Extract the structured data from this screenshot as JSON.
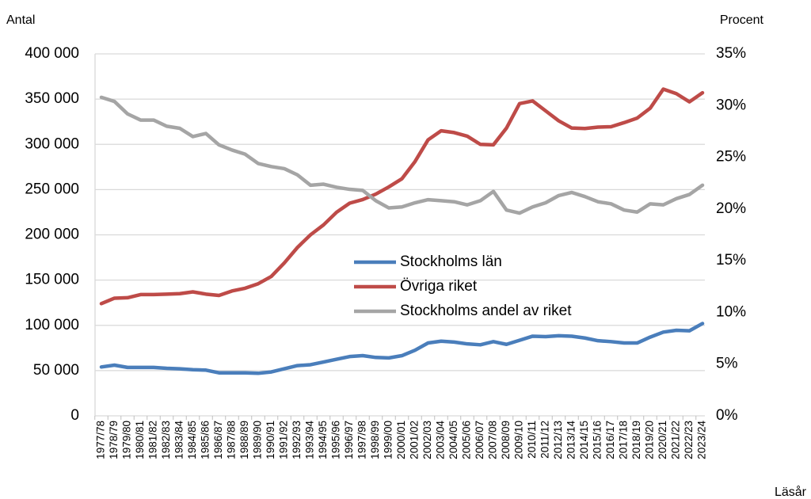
{
  "chart_data": {
    "type": "line",
    "y_label": "Antal",
    "y2_label": "Procent",
    "x_label": "Läsår",
    "categories": [
      "1977/78",
      "1978/79",
      "1979/80",
      "1980/81",
      "1981/82",
      "1982/83",
      "1983/84",
      "1984/85",
      "1985/86",
      "1986/87",
      "1987/88",
      "1988/89",
      "1989/90",
      "1990/91",
      "1991/92",
      "1992/93",
      "1993/94",
      "1994/95",
      "1995/96",
      "1996/97",
      "1997/98",
      "1998/99",
      "1999/00",
      "2000/01",
      "2001/02",
      "2002/03",
      "2003/04",
      "2004/05",
      "2005/06",
      "2006/07",
      "2007/08",
      "2008/09",
      "2009/10",
      "2010/11",
      "2011/12",
      "2012/13",
      "2013/14",
      "2014/15",
      "2015/16",
      "2016/17",
      "2017/18",
      "2018/19",
      "2019/20",
      "2020/21",
      "2021/22",
      "2022/23",
      "2023/24"
    ],
    "series": [
      {
        "name": "Stockholms län",
        "color": "#4a7ebb",
        "values": [
          54000,
          56000,
          53500,
          53500,
          53500,
          52500,
          52000,
          51000,
          50500,
          47500,
          47500,
          47500,
          47000,
          48500,
          52000,
          55500,
          56500,
          59500,
          62500,
          65500,
          66500,
          64500,
          64000,
          66500,
          72500,
          80500,
          82500,
          81500,
          79500,
          78500,
          82000,
          79000,
          83500,
          88000,
          87500,
          88500,
          88000,
          86000,
          83000,
          82000,
          80500,
          80500,
          87000,
          92500,
          94500,
          94000,
          102000
        ]
      },
      {
        "name": "Övriga riket",
        "color": "#be4b48",
        "values": [
          124000,
          130000,
          130500,
          134000,
          134000,
          134500,
          135000,
          137000,
          134500,
          133000,
          138000,
          141000,
          146000,
          154000,
          169000,
          186000,
          200000,
          211000,
          225000,
          235000,
          239000,
          245000,
          253000,
          262000,
          281000,
          305000,
          315000,
          313000,
          309000,
          300000,
          299500,
          318000,
          345000,
          348000,
          337000,
          326000,
          318000,
          317500,
          319000,
          319500,
          324000,
          329000,
          340000,
          361000,
          356000,
          347000,
          357000
        ]
      },
      {
        "name": "Stockholms andel av riket",
        "color": "#a5a5a5",
        "axis": "y2",
        "values": [
          30.8,
          30.4,
          29.2,
          28.6,
          28.6,
          28.0,
          27.8,
          27.0,
          27.3,
          26.2,
          25.7,
          25.3,
          24.4,
          24.1,
          23.9,
          23.3,
          22.3,
          22.4,
          22.1,
          21.9,
          21.8,
          20.8,
          20.1,
          20.2,
          20.6,
          20.9,
          20.8,
          20.7,
          20.4,
          20.8,
          21.7,
          19.9,
          19.6,
          20.2,
          20.6,
          21.3,
          21.6,
          21.2,
          20.7,
          20.5,
          19.9,
          19.7,
          20.5,
          20.4,
          21.0,
          21.4,
          22.3
        ]
      }
    ],
    "ylim": [
      0,
      400000
    ],
    "yticks": [
      0,
      {
        "value": 50000,
        "label": "50 000"
      },
      {
        "value": 100000,
        "label": "100 000"
      },
      {
        "value": 150000,
        "label": "150 000"
      },
      {
        "value": 200000,
        "label": "200 000"
      },
      {
        "value": 250000,
        "label": "250 000"
      },
      {
        "value": 300000,
        "label": "300 000"
      },
      {
        "value": 350000,
        "label": "350 000"
      },
      {
        "value": 400000,
        "label": "400 000"
      }
    ],
    "y2lim": [
      0,
      35
    ],
    "y2ticks": [
      {
        "value": 0,
        "label": "0%"
      },
      {
        "value": 5,
        "label": "5%"
      },
      {
        "value": 10,
        "label": "10%"
      },
      {
        "value": 15,
        "label": "15%"
      },
      {
        "value": 20,
        "label": "20%"
      },
      {
        "value": 25,
        "label": "25%"
      },
      {
        "value": 30,
        "label": "30%"
      },
      {
        "value": 35,
        "label": "35%"
      }
    ],
    "grid": true
  }
}
